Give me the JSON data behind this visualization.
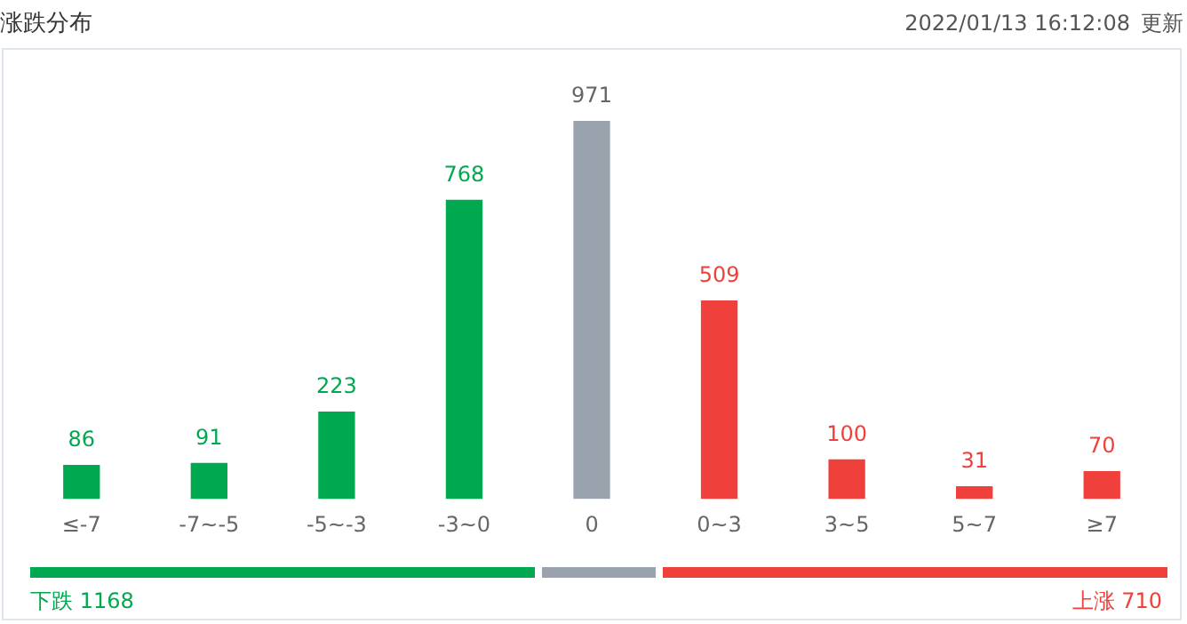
{
  "chart_data": {
    "type": "bar",
    "title": "涨跌分布",
    "categories": [
      "≤-7",
      "-7~-5",
      "-5~-3",
      "-3~0",
      "0",
      "0~3",
      "3~5",
      "5~7",
      "≥7"
    ],
    "values": [
      86,
      91,
      223,
      768,
      971,
      509,
      100,
      31,
      70
    ],
    "colors": [
      "#00a94f",
      "#00a94f",
      "#00a94f",
      "#00a94f",
      "#9aa3ad",
      "#f0403c",
      "#f0403c",
      "#f0403c",
      "#f0403c"
    ],
    "data_labels": true,
    "grid": false,
    "legend": false,
    "annotations": [
      "2022/01/13 16:12:08",
      "更新",
      "下跌 1168",
      "上涨 710"
    ]
  }
}
